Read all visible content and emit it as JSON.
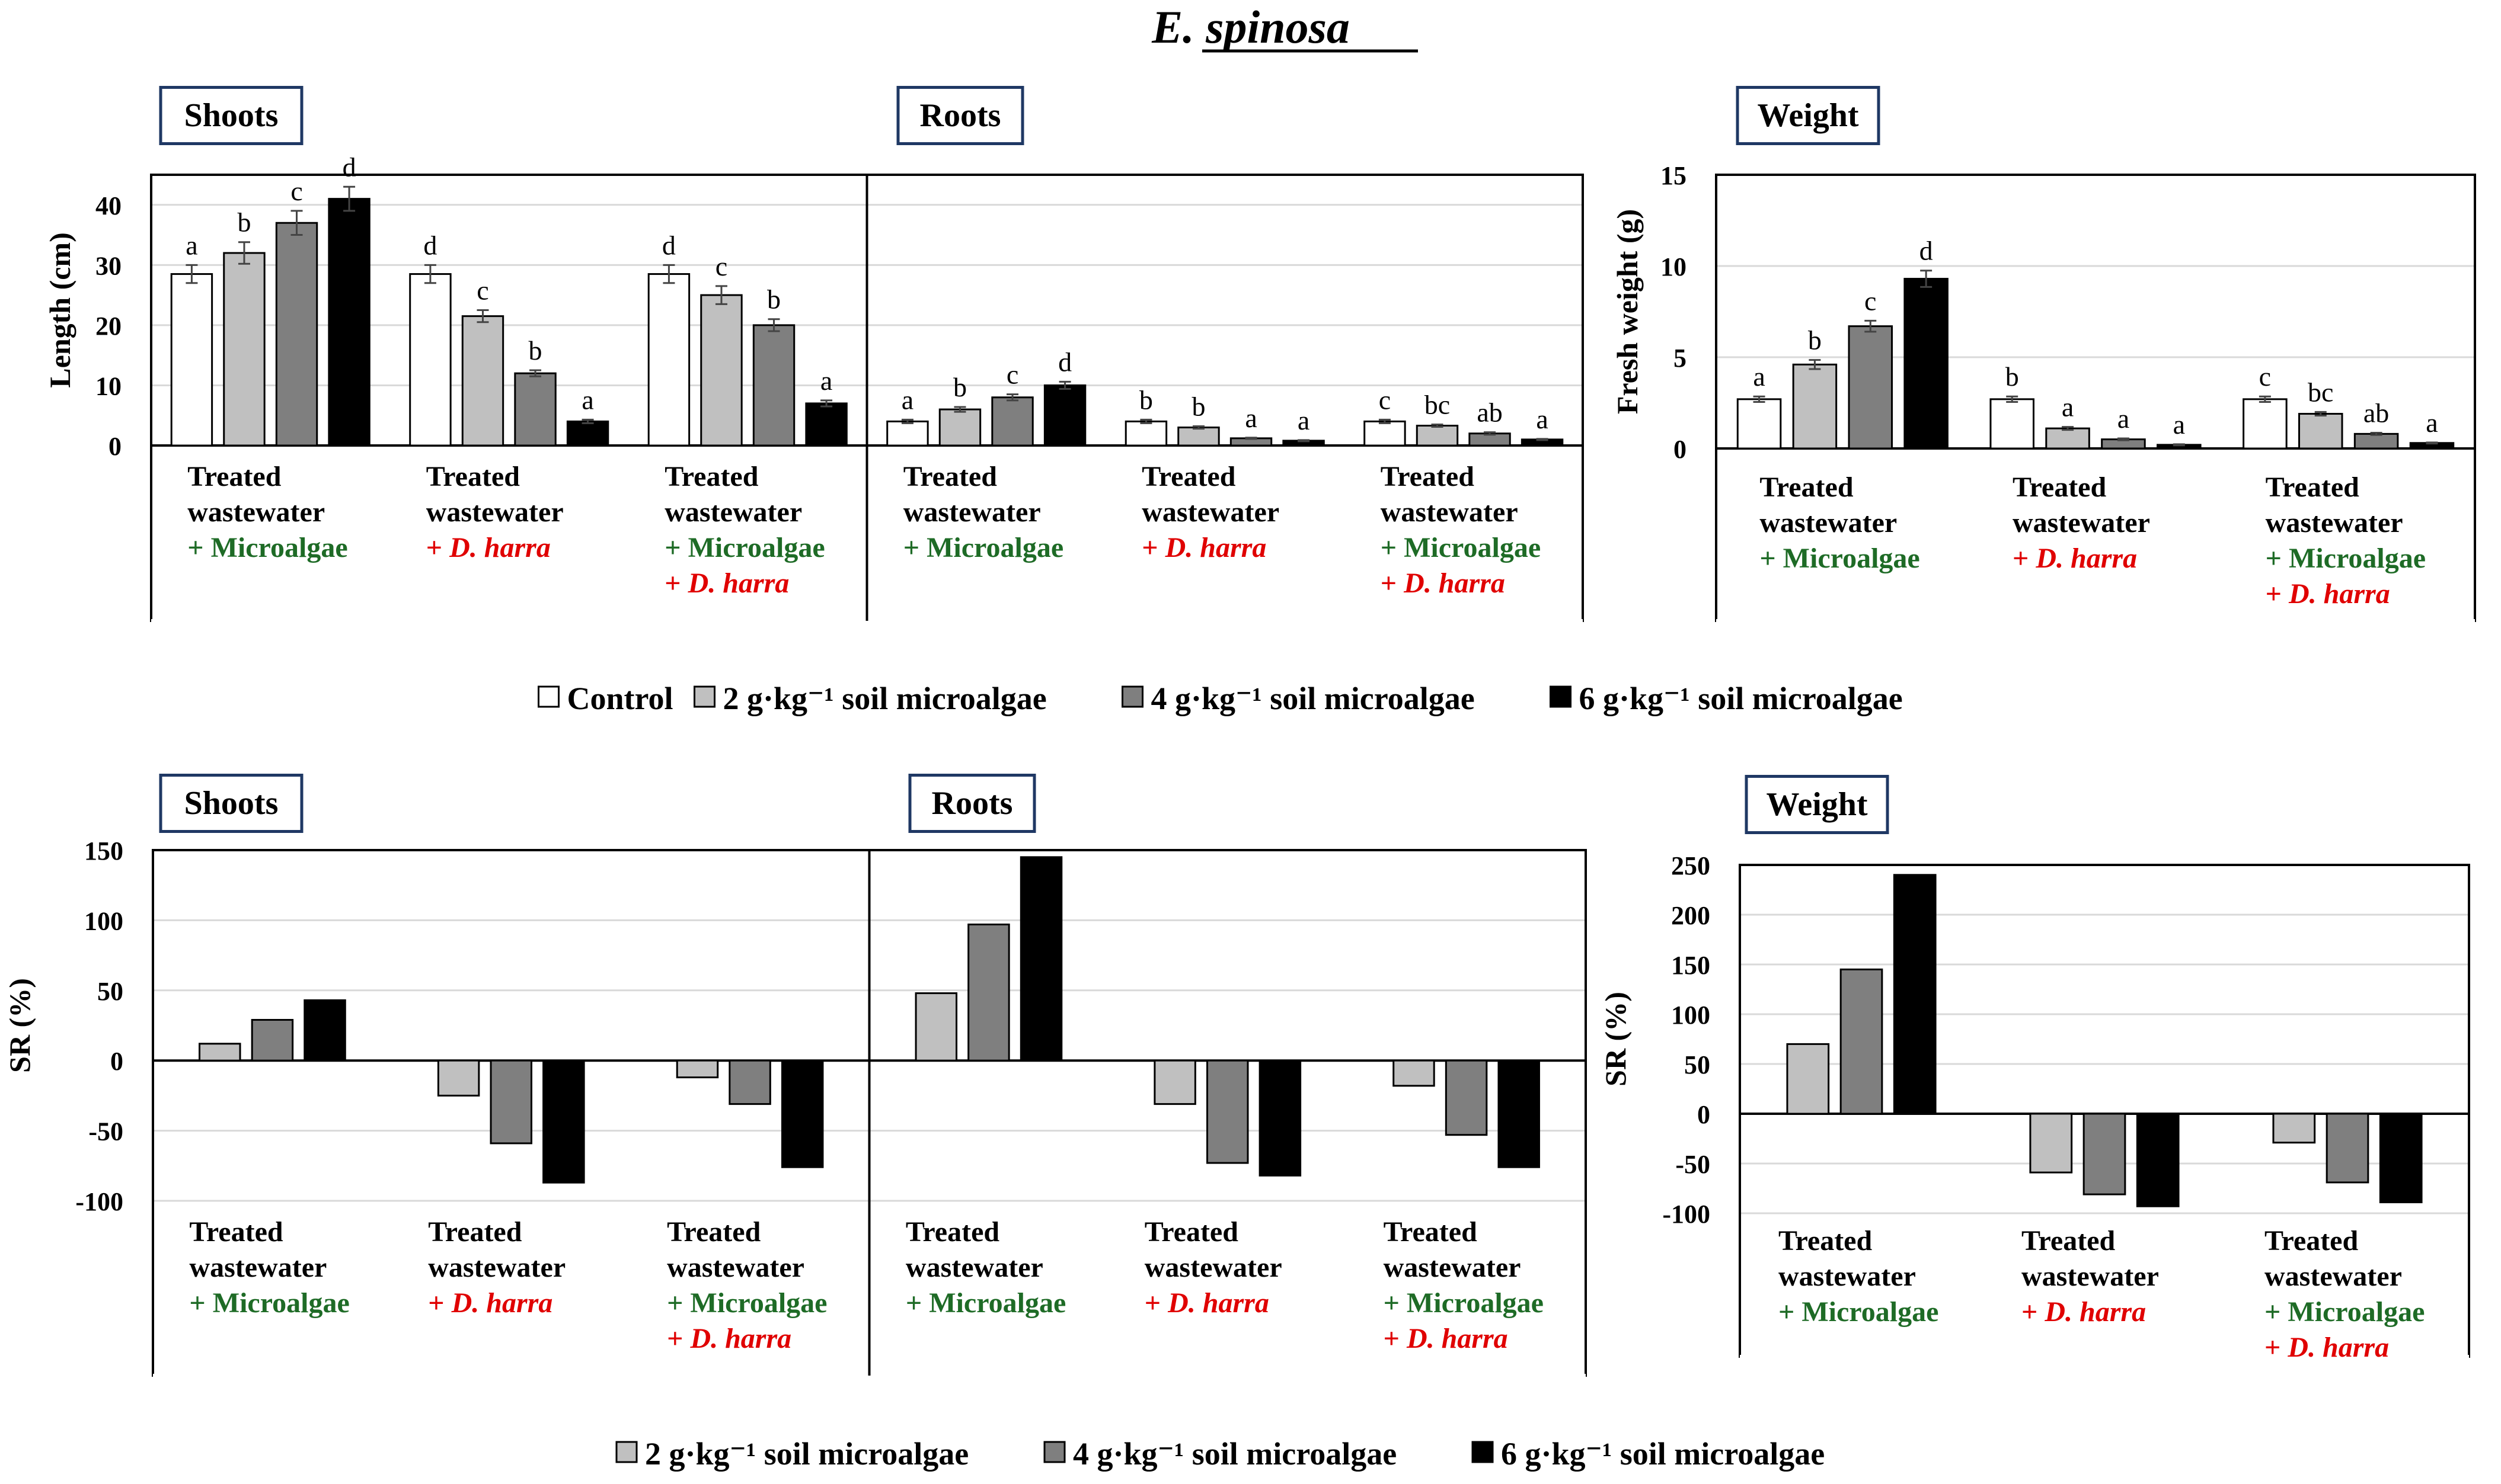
{
  "figure_title": "E. spinosa",
  "palette": {
    "control": "#ffffff",
    "g2": "#c0c0c0",
    "g4": "#7f7f7f",
    "g6": "#000000",
    "label_box_border": "#1f3864",
    "microalgae_text": "#1e6b26",
    "dharra_text": "#e00000",
    "grid": "#d9d9d9"
  },
  "group_labels": [
    {
      "line1": "Treated",
      "line2": "wastewater",
      "line3": "+ Microalgae",
      "line4": ""
    },
    {
      "line1": "Treated",
      "line2": "wastewater",
      "line3": "+ D. harra",
      "line4": ""
    },
    {
      "line1": "Treated",
      "line2": "wastewater",
      "line3": "+ Microalgae",
      "line4": "+ D. harra"
    }
  ],
  "legend_top": [
    "Control",
    "2 g·kg⁻¹ soil microalgae",
    "4 g·kg⁻¹ soil microalgae",
    "6 g·kg⁻¹ soil microalgae"
  ],
  "legend_bottom": [
    "2 g·kg⁻¹ soil microalgae",
    "4 g·kg⁻¹ soil microalgae",
    "6 g·kg⁻¹ soil microalgae"
  ],
  "chart_data": [
    {
      "id": "length",
      "type": "bar",
      "ylabel": "Length (cm)",
      "ylim": [
        0,
        45
      ],
      "yticks": [
        0,
        10,
        20,
        30,
        40
      ],
      "panels": [
        {
          "title": "Shoots",
          "groups": [
            {
              "values": [
                28.5,
                32.0,
                37.0,
                41.0
              ],
              "errors": [
                1.5,
                1.8,
                2.0,
                2.0
              ],
              "letters": [
                "a",
                "b",
                "c",
                "d"
              ]
            },
            {
              "values": [
                28.5,
                21.5,
                12.0,
                4.0
              ],
              "errors": [
                1.5,
                1.0,
                0.5,
                0.3
              ],
              "letters": [
                "d",
                "c",
                "b",
                "a"
              ]
            },
            {
              "values": [
                28.5,
                25.0,
                20.0,
                7.0
              ],
              "errors": [
                1.5,
                1.5,
                1.0,
                0.5
              ],
              "letters": [
                "d",
                "c",
                "b",
                "a"
              ]
            }
          ]
        },
        {
          "title": "Roots",
          "groups": [
            {
              "values": [
                4.0,
                6.0,
                8.0,
                10.0
              ],
              "errors": [
                0.3,
                0.4,
                0.5,
                0.6
              ],
              "letters": [
                "a",
                "b",
                "c",
                "d"
              ]
            },
            {
              "values": [
                4.0,
                3.0,
                1.2,
                0.8
              ],
              "errors": [
                0.3,
                0.2,
                0.1,
                0.1
              ],
              "letters": [
                "b",
                "b",
                "a",
                "a"
              ]
            },
            {
              "values": [
                4.0,
                3.3,
                2.0,
                1.0
              ],
              "errors": [
                0.3,
                0.2,
                0.2,
                0.1
              ],
              "letters": [
                "c",
                "bc",
                "ab",
                "a"
              ]
            }
          ]
        }
      ]
    },
    {
      "id": "weight",
      "type": "bar",
      "ylabel": "Fresh weight (g)",
      "ylim": [
        0,
        15
      ],
      "yticks": [
        0,
        5,
        10,
        15
      ],
      "panels": [
        {
          "title": "Weight",
          "groups": [
            {
              "values": [
                2.7,
                4.6,
                6.7,
                9.3
              ],
              "errors": [
                0.15,
                0.25,
                0.3,
                0.45
              ],
              "letters": [
                "a",
                "b",
                "c",
                "d"
              ]
            },
            {
              "values": [
                2.7,
                1.1,
                0.5,
                0.2
              ],
              "errors": [
                0.15,
                0.08,
                0.05,
                0.03
              ],
              "letters": [
                "b",
                "a",
                "a",
                "a"
              ]
            },
            {
              "values": [
                2.7,
                1.9,
                0.8,
                0.3
              ],
              "errors": [
                0.15,
                0.1,
                0.06,
                0.03
              ],
              "letters": [
                "c",
                "bc",
                "ab",
                "a"
              ]
            }
          ]
        }
      ]
    },
    {
      "id": "sr_length",
      "type": "bar",
      "ylabel": "SR (%)",
      "ylim": [
        -100,
        150
      ],
      "yticks": [
        -100,
        -50,
        0,
        50,
        100,
        150
      ],
      "panels": [
        {
          "title": "Shoots",
          "groups": [
            {
              "values": [
                12,
                29,
                43
              ]
            },
            {
              "values": [
                -25,
                -59,
                -87
              ]
            },
            {
              "values": [
                -12,
                -31,
                -76
              ]
            }
          ]
        },
        {
          "title": "Roots",
          "groups": [
            {
              "values": [
                48,
                97,
                145
              ]
            },
            {
              "values": [
                -31,
                -73,
                -82
              ]
            },
            {
              "values": [
                -18,
                -53,
                -76
              ]
            }
          ]
        }
      ]
    },
    {
      "id": "sr_weight",
      "type": "bar",
      "ylabel": "SR (%)",
      "ylim": [
        -100,
        250
      ],
      "yticks": [
        -100,
        -50,
        0,
        50,
        100,
        150,
        200,
        250
      ],
      "panels": [
        {
          "title": "Weight",
          "groups": [
            {
              "values": [
                70,
                145,
                240
              ]
            },
            {
              "values": [
                -59,
                -81,
                -93
              ]
            },
            {
              "values": [
                -29,
                -69,
                -89
              ]
            }
          ]
        }
      ]
    }
  ]
}
